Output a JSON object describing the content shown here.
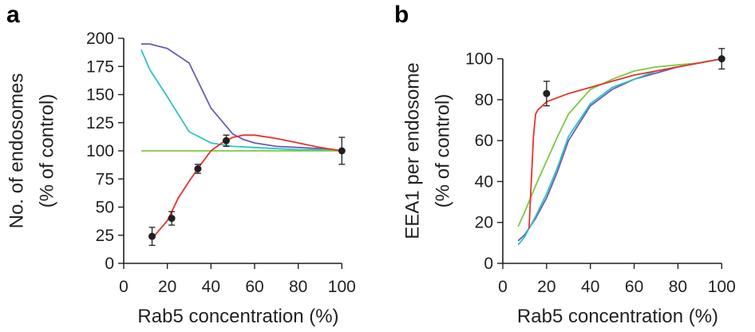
{
  "chart_data": [
    {
      "panel": "a",
      "type": "line",
      "xlabel": "Rab5 concentration (%)",
      "ylabel_line1": "No. of endosomes",
      "ylabel_line2": "(% of control)",
      "xlim": [
        0,
        105
      ],
      "ylim": [
        0,
        200
      ],
      "xticks": [
        0,
        20,
        40,
        60,
        80,
        100
      ],
      "yticks": [
        0,
        25,
        50,
        75,
        100,
        125,
        150,
        175,
        200
      ],
      "grid": false,
      "legend": "none",
      "series": [
        {
          "color": "#6a5bb8",
          "x": [
            8,
            12,
            20,
            30,
            40,
            50,
            55,
            60,
            70,
            80,
            90,
            100
          ],
          "y": [
            195,
            195,
            191,
            178,
            138,
            115,
            110,
            107,
            104,
            103,
            102,
            100
          ]
        },
        {
          "color": "#2ec4c4",
          "x": [
            8,
            12,
            20,
            30,
            40,
            50,
            60,
            70,
            80,
            90,
            100
          ],
          "y": [
            190,
            172,
            148,
            117,
            107,
            104,
            103,
            102,
            101,
            101,
            100
          ]
        },
        {
          "color": "#7ac943",
          "x": [
            8,
            20,
            40,
            60,
            80,
            100
          ],
          "y": [
            100,
            100,
            100,
            100,
            100,
            100
          ]
        },
        {
          "color": "#e8312a",
          "x": [
            13,
            20,
            25,
            30,
            35,
            40,
            45,
            50,
            55,
            60,
            70,
            80,
            90,
            100
          ],
          "y": [
            22,
            38,
            58,
            73,
            87,
            100,
            107,
            112,
            114,
            114,
            111,
            107,
            103,
            100
          ]
        }
      ],
      "points": [
        {
          "x": 13,
          "y": 24,
          "err": 8
        },
        {
          "x": 22,
          "y": 40,
          "err": 6
        },
        {
          "x": 34,
          "y": 84,
          "err": 4
        },
        {
          "x": 47,
          "y": 109,
          "err": 5
        },
        {
          "x": 100,
          "y": 100,
          "err": 12
        }
      ]
    },
    {
      "panel": "b",
      "type": "line",
      "xlabel": "Rab5 concentration (%)",
      "ylabel_line1": "EEA1 per endosome",
      "ylabel_line2": "(% of control)",
      "xlim": [
        0,
        105
      ],
      "ylim": [
        0,
        110
      ],
      "xticks": [
        0,
        20,
        40,
        60,
        80,
        100
      ],
      "yticks": [
        0,
        20,
        40,
        60,
        80,
        100
      ],
      "grid": false,
      "legend": "none",
      "series": [
        {
          "color": "#6a5bb8",
          "x": [
            7,
            10,
            15,
            20,
            25,
            30,
            40,
            50,
            60,
            70,
            80,
            90,
            100
          ],
          "y": [
            11,
            14,
            22,
            32,
            45,
            60,
            77,
            85,
            90,
            93,
            96,
            98,
            100
          ]
        },
        {
          "color": "#2ec4c4",
          "x": [
            7,
            10,
            15,
            20,
            25,
            30,
            40,
            50,
            60,
            70,
            80,
            90,
            100
          ],
          "y": [
            9,
            13,
            23,
            34,
            47,
            62,
            78,
            86,
            90,
            94,
            96,
            98,
            100
          ]
        },
        {
          "color": "#7ac943",
          "x": [
            7,
            10,
            15,
            20,
            25,
            30,
            35,
            40,
            50,
            60,
            70,
            80,
            90,
            100
          ],
          "y": [
            18,
            25,
            38,
            50,
            62,
            73,
            79,
            85,
            90,
            94,
            96,
            97,
            98,
            100
          ]
        },
        {
          "color": "#e8312a",
          "x": [
            12,
            13,
            14,
            15,
            16,
            18,
            20,
            25,
            30,
            40,
            50,
            60,
            70,
            80,
            90,
            100
          ],
          "y": [
            17,
            40,
            62,
            73,
            75,
            77,
            79,
            81,
            83,
            86,
            89,
            92,
            94,
            96,
            98,
            100
          ]
        }
      ],
      "points": [
        {
          "x": 20,
          "y": 83,
          "err": 6
        },
        {
          "x": 100,
          "y": 100,
          "err": 5
        }
      ]
    }
  ],
  "labels": {
    "panel_a": "a",
    "panel_b": "b"
  }
}
